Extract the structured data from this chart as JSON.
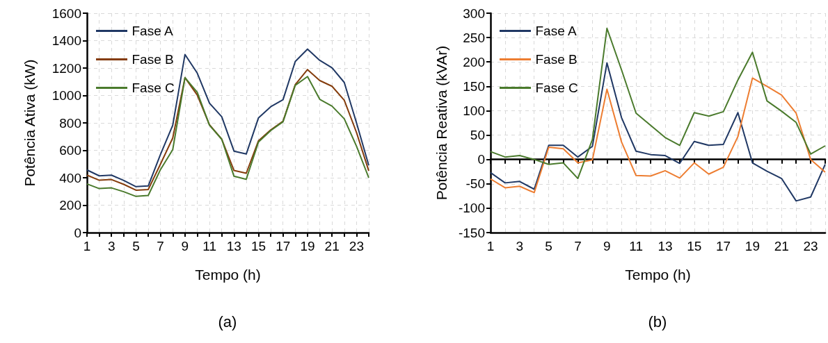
{
  "chart_data": [
    {
      "type": "line",
      "xlabel": "Tempo (h)",
      "ylabel": "Potência Ativa (kW)",
      "annotations": [
        "(a)"
      ],
      "x": [
        1,
        2,
        3,
        4,
        5,
        6,
        7,
        8,
        9,
        10,
        11,
        12,
        13,
        14,
        15,
        16,
        17,
        18,
        19,
        20,
        21,
        22,
        23,
        24
      ],
      "xlim": [
        1,
        24
      ],
      "xticks": [
        1,
        {
          "value": 2,
          "label": null
        },
        3,
        {
          "value": 4,
          "label": null
        },
        5,
        {
          "value": 6,
          "label": null
        },
        7,
        {
          "value": 8,
          "label": null
        },
        9,
        {
          "value": 10,
          "label": null
        },
        11,
        {
          "value": 12,
          "label": null
        },
        13,
        {
          "value": 14,
          "label": null
        },
        15,
        {
          "value": 16,
          "label": null
        },
        17,
        {
          "value": 18,
          "label": null
        },
        19,
        {
          "value": 20,
          "label": null
        },
        21,
        {
          "value": 22,
          "label": null
        },
        23,
        {
          "value": 24,
          "label": null
        }
      ],
      "series": [
        {
          "name": "Fase A",
          "color": "#203864",
          "values": [
            457,
            414,
            419,
            380,
            335,
            340,
            570,
            783,
            1299,
            1163,
            944,
            845,
            594,
            573,
            837,
            918,
            969,
            1248,
            1338,
            1256,
            1202,
            1095,
            800,
            490
          ]
        },
        {
          "name": "Fase B",
          "color": "#843c0c",
          "values": [
            419,
            382,
            387,
            352,
            309,
            314,
            500,
            690,
            1130,
            1003,
            786,
            681,
            453,
            433,
            670,
            749,
            812,
            1079,
            1189,
            1109,
            1067,
            965,
            730,
            450
          ]
        },
        {
          "name": "Fase C",
          "color": "#4a7a2c",
          "values": [
            355,
            321,
            326,
            298,
            264,
            271,
            460,
            605,
            1130,
            1023,
            783,
            681,
            411,
            389,
            661,
            744,
            808,
            1074,
            1138,
            972,
            922,
            830,
            630,
            400
          ]
        }
      ],
      "ylim": [
        0,
        1600
      ],
      "yticks": [
        0,
        200,
        400,
        600,
        800,
        1000,
        1200,
        1400,
        1600
      ],
      "grid": true,
      "legend": "top left",
      "marker": "none",
      "line_style": "solid"
    },
    {
      "type": "line",
      "xlabel": "Tempo (h)",
      "ylabel": "Potência Reativa (kVAr)",
      "annotations": [
        "(b)"
      ],
      "x": [
        1,
        2,
        3,
        4,
        5,
        6,
        7,
        8,
        9,
        10,
        11,
        12,
        13,
        14,
        15,
        16,
        17,
        18,
        19,
        20,
        21,
        22,
        23,
        24
      ],
      "xlim": [
        1,
        24
      ],
      "xticks": [
        1,
        {
          "value": 2,
          "label": null
        },
        3,
        {
          "value": 4,
          "label": null
        },
        5,
        {
          "value": 6,
          "label": null
        },
        7,
        {
          "value": 8,
          "label": null
        },
        9,
        {
          "value": 10,
          "label": null
        },
        11,
        {
          "value": 12,
          "label": null
        },
        13,
        {
          "value": 14,
          "label": null
        },
        15,
        {
          "value": 16,
          "label": null
        },
        17,
        {
          "value": 18,
          "label": null
        },
        19,
        {
          "value": 20,
          "label": null
        },
        21,
        {
          "value": 22,
          "label": null
        },
        23,
        {
          "value": 24,
          "label": null
        }
      ],
      "series": [
        {
          "name": "Fase A",
          "color": "#203864",
          "values": [
            -27,
            -48,
            -45,
            -61,
            29,
            29,
            5,
            27,
            198,
            86,
            17,
            10,
            8,
            -8,
            37,
            29,
            31,
            96,
            -7,
            -24,
            -39,
            -85,
            -77,
            -10
          ]
        },
        {
          "name": "Fase B",
          "color": "#ed7d31",
          "values": [
            -40,
            -58,
            -55,
            -68,
            25,
            22,
            -7,
            -1,
            144,
            36,
            -33,
            -34,
            -23,
            -38,
            -7,
            -30,
            -16,
            47,
            167,
            150,
            132,
            95,
            0,
            -26
          ]
        },
        {
          "name": "Fase C",
          "color": "#4a7a2c",
          "values": [
            16,
            5,
            8,
            0,
            -10,
            -7,
            -39,
            41,
            269,
            184,
            95,
            70,
            45,
            29,
            96,
            89,
            98,
            163,
            220,
            120,
            99,
            76,
            11,
            28
          ]
        }
      ],
      "ylim": [
        -150,
        300
      ],
      "yticks": [
        -150,
        -100,
        -50,
        0,
        50,
        100,
        150,
        200,
        250,
        300
      ],
      "grid": true,
      "legend": "top left",
      "marker": "none",
      "line_style": "solid"
    }
  ]
}
